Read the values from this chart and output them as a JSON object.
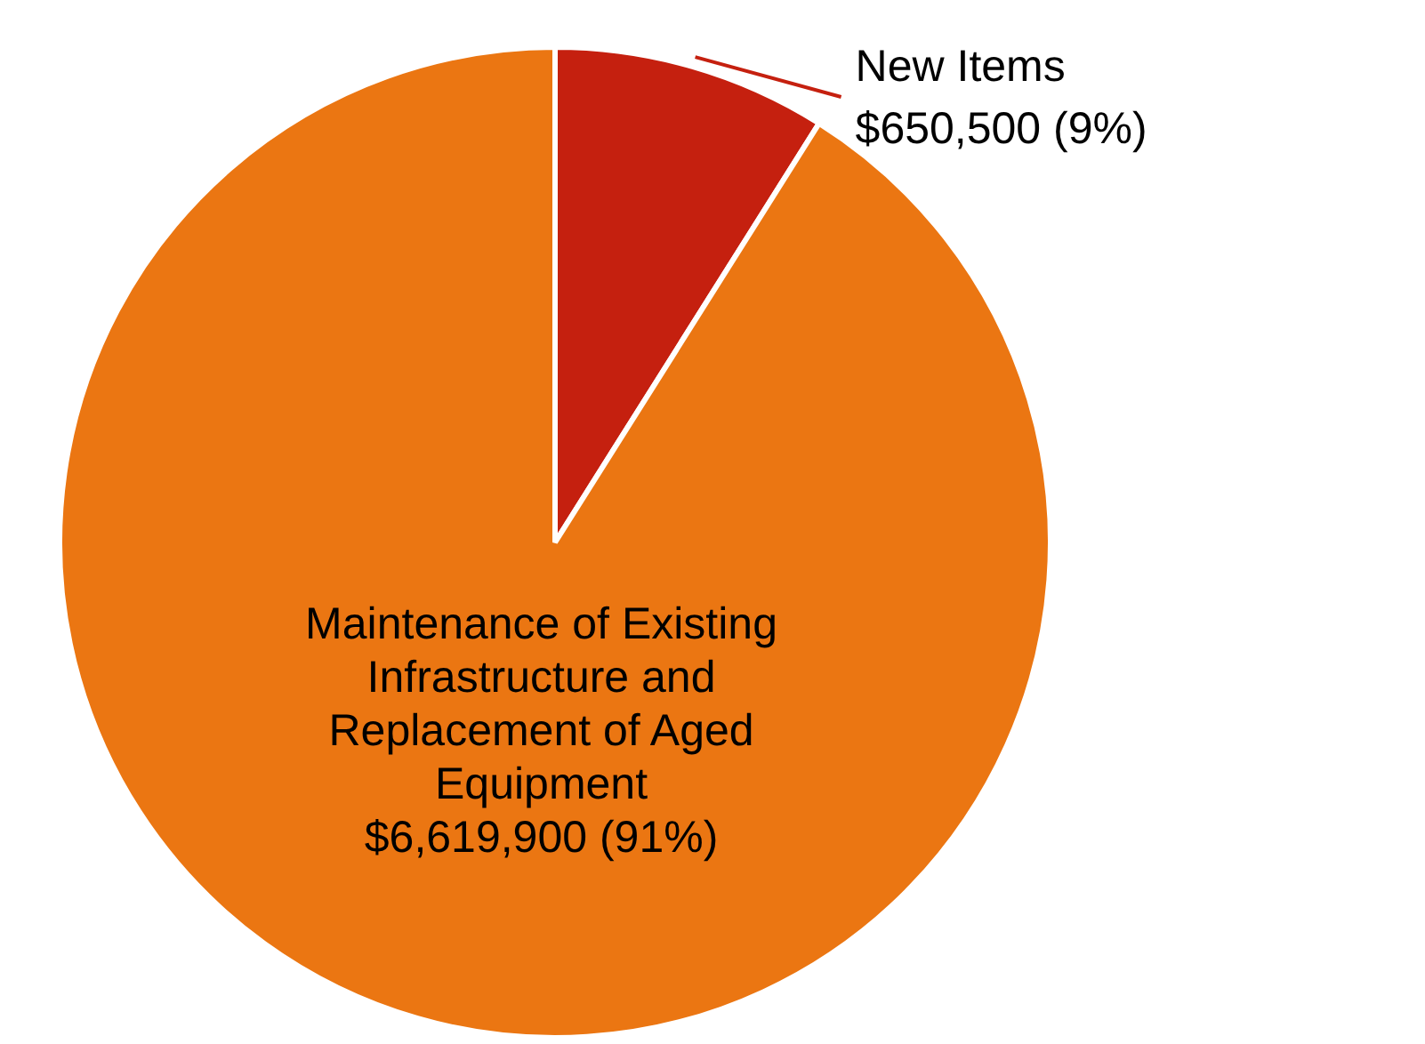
{
  "chart_data": {
    "type": "pie",
    "categories": [
      "New Items",
      "Maintenance of Existing Infrastructure and Replacement of Aged Equipment"
    ],
    "values": [
      650500,
      6619900
    ],
    "colors": [
      "#c5200f",
      "#eb7612"
    ],
    "value_labels": [
      "$650,500 (9%)",
      "$6,619,900 (91%)"
    ],
    "legend": false
  }
}
